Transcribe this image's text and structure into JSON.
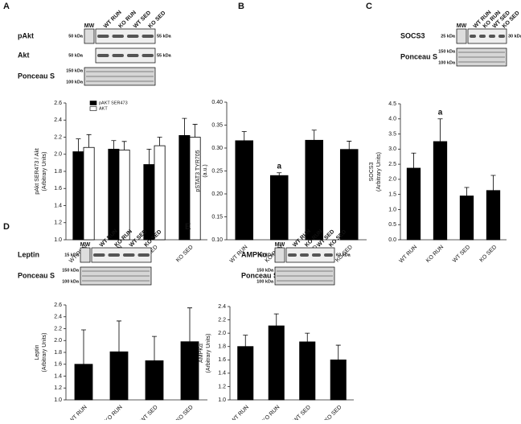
{
  "chart_data": [
    {
      "type": "bar",
      "panel": "A",
      "categories": [
        "WT RUN",
        "KO RUN",
        "WT SED",
        "KO SED"
      ],
      "series": [
        {
          "name": "pAKT SER473",
          "color": "#000000",
          "values": [
            2.03,
            2.06,
            1.88,
            2.22
          ],
          "errors": [
            0.15,
            0.1,
            0.18,
            0.2
          ]
        },
        {
          "name": "AKT",
          "color": "#ffffff",
          "values": [
            2.08,
            2.05,
            2.1,
            2.2
          ],
          "errors": [
            0.15,
            0.1,
            0.1,
            0.15
          ]
        }
      ],
      "ylabel": [
        "pAkt SER473 / Akt",
        "(Arbitrary Units)"
      ],
      "ylim": [
        1.0,
        2.6
      ],
      "yticks": [
        {
          "value": 1.0,
          "label": "1.0"
        },
        {
          "value": 1.2,
          "label": "1.2"
        },
        {
          "value": 1.4,
          "label": "1.4"
        },
        {
          "value": 1.6,
          "label": "1.6"
        },
        {
          "value": 1.8,
          "label": "1.8"
        },
        {
          "value": 2.0,
          "label": "2.0"
        },
        {
          "value": 2.2,
          "label": "2.2"
        },
        {
          "value": 2.4,
          "label": "2.4"
        },
        {
          "value": 2.6,
          "label": "2.6"
        }
      ],
      "legend": "top-left",
      "blot": {
        "mw": "MW",
        "lanes": [
          "WT RUN",
          "KO RUN",
          "WT SED",
          "KO SED"
        ],
        "rows": [
          {
            "label": "pAkt",
            "marker": "50 kDa",
            "size": "55 kDa"
          },
          {
            "label": "Akt",
            "marker": "50 kDa",
            "size": "55 kDa"
          },
          {
            "label": "Ponceau S",
            "markers": [
              "150 kDa",
              "100 kDa"
            ]
          }
        ]
      }
    },
    {
      "type": "bar",
      "panel": "B",
      "categories": [
        "WT RUN",
        "KO RUN",
        "WT SED",
        "KO SED"
      ],
      "series": [
        {
          "name": "pSTAT3 TYR705",
          "color": "#000000",
          "values": [
            0.316,
            0.24,
            0.317,
            0.297
          ],
          "errors": [
            0.02,
            0.006,
            0.022,
            0.018
          ]
        }
      ],
      "ylabel": [
        "pSTAT3 TYR705",
        "(a.u.)"
      ],
      "ylim": [
        0.1,
        0.4
      ],
      "yticks": [
        {
          "value": 0.1,
          "label": "0.10"
        },
        {
          "value": 0.15,
          "label": "0.15"
        },
        {
          "value": 0.2,
          "label": "0.20"
        },
        {
          "value": 0.25,
          "label": "0.25"
        },
        {
          "value": 0.3,
          "label": "0.30"
        },
        {
          "value": 0.35,
          "label": "0.35"
        },
        {
          "value": 0.4,
          "label": "0.40"
        }
      ],
      "annotations": [
        {
          "text": "a",
          "x": "KO RUN"
        }
      ]
    },
    {
      "type": "bar",
      "panel": "C",
      "categories": [
        "WT RUN",
        "KO RUN",
        "WT SED",
        "KO SED"
      ],
      "series": [
        {
          "name": "SOCS3",
          "color": "#000000",
          "values": [
            2.37,
            3.25,
            1.45,
            1.63
          ],
          "errors": [
            0.5,
            0.75,
            0.28,
            0.5
          ]
        }
      ],
      "ylabel": [
        "SOCS3",
        "(Arbitrary Units)"
      ],
      "ylim": [
        0,
        4.5
      ],
      "yticks": [
        {
          "value": 0,
          "label": "0.0"
        },
        {
          "value": 0.5,
          "label": "0.5"
        },
        {
          "value": 1,
          "label": "1.0"
        },
        {
          "value": 1.5,
          "label": "1.5"
        },
        {
          "value": 2,
          "label": "2.0"
        },
        {
          "value": 2.5,
          "label": "2.5"
        },
        {
          "value": 3,
          "label": "3.0"
        },
        {
          "value": 3.5,
          "label": "3.5"
        },
        {
          "value": 4,
          "label": "4.0"
        },
        {
          "value": 4.5,
          "label": "4.5"
        }
      ],
      "annotations": [
        {
          "text": "a",
          "x": "KO RUN"
        }
      ],
      "blot": {
        "mw": "MW",
        "lanes": [
          "WT RUN",
          "KO RUN",
          "WT SED",
          "KO SED"
        ],
        "rows": [
          {
            "label": "SOCS3",
            "marker": "25 kDa",
            "size": "30 kDa"
          },
          {
            "label": "Ponceau S",
            "markers": [
              "150 kDa",
              "100 kDa"
            ]
          }
        ]
      }
    },
    {
      "type": "bar",
      "panel": "D",
      "categories": [
        "WT RUN",
        "KO RUN",
        "WT SED",
        "KO SED"
      ],
      "series": [
        {
          "name": "Leptin",
          "color": "#000000",
          "values": [
            1.6,
            1.81,
            1.66,
            1.98
          ],
          "errors": [
            0.58,
            0.52,
            0.41,
            0.57
          ]
        }
      ],
      "ylabel": [
        "Leptin",
        "(Arbitrary Units)"
      ],
      "ylim": [
        1.0,
        2.6
      ],
      "yticks": [
        {
          "value": 1.0,
          "label": "1.0"
        },
        {
          "value": 1.2,
          "label": "1.2"
        },
        {
          "value": 1.4,
          "label": "1.4"
        },
        {
          "value": 1.6,
          "label": "1.6"
        },
        {
          "value": 1.8,
          "label": "1.8"
        },
        {
          "value": 2.0,
          "label": "2.0"
        },
        {
          "value": 2.2,
          "label": "2.2"
        },
        {
          "value": 2.4,
          "label": "2.4"
        },
        {
          "value": 2.6,
          "label": "2.6"
        }
      ],
      "blot": {
        "mw": "MW",
        "lanes": [
          "WT RUN",
          "KO RUN",
          "WT SED",
          "KO SED"
        ],
        "rows": [
          {
            "label": "Leptin",
            "marker": "15 kDa"
          },
          {
            "label": "Ponceau S",
            "markers": [
              "150 kDa",
              "100 kDa"
            ]
          }
        ]
      }
    },
    {
      "type": "bar",
      "panel": "E",
      "categories": [
        "WT RUN",
        "KO RUN",
        "WT SED",
        "KO SED"
      ],
      "series": [
        {
          "name": "AMPKα",
          "color": "#000000",
          "values": [
            1.8,
            2.11,
            1.87,
            1.6
          ],
          "errors": [
            0.17,
            0.18,
            0.13,
            0.22
          ]
        }
      ],
      "ylabel": [
        "AMPKα",
        "(Arbitrary Units)"
      ],
      "ylim": [
        1.0,
        2.4
      ],
      "yticks": [
        {
          "value": 1.0,
          "label": "1.0"
        },
        {
          "value": 1.2,
          "label": "1.2"
        },
        {
          "value": 1.4,
          "label": "1.4"
        },
        {
          "value": 1.6,
          "label": "1.6"
        },
        {
          "value": 1.8,
          "label": "1.8"
        },
        {
          "value": 2.0,
          "label": "2.0"
        },
        {
          "value": 2.2,
          "label": "2.2"
        },
        {
          "value": 2.4,
          "label": "2.4"
        }
      ],
      "blot": {
        "mw": "MW",
        "lanes": [
          "WT RUN",
          "KO RUN",
          "WT SED",
          "KO SED"
        ],
        "rows": [
          {
            "label": "AMPKα",
            "marker": "50 kDa",
            "size": "62 kDa"
          },
          {
            "label": "Ponceau S",
            "markers": [
              "150 kDa",
              "100 kDa"
            ]
          }
        ]
      }
    }
  ]
}
